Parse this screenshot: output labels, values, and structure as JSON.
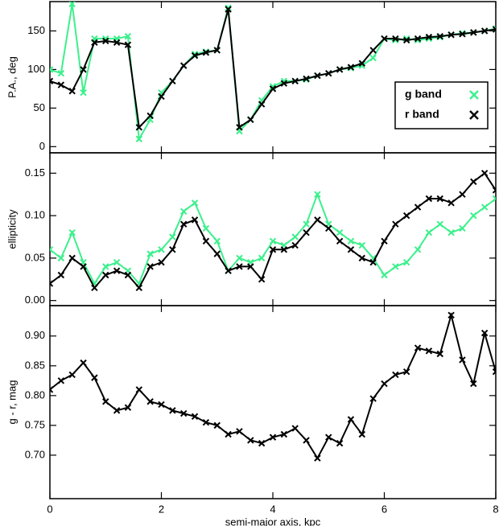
{
  "chart_data": [
    {
      "type": "line",
      "ylabel": "P.A., deg",
      "legend": "right",
      "x": [
        0,
        0.2,
        0.4,
        0.6,
        0.8,
        1.0,
        1.2,
        1.4,
        1.6,
        1.8,
        2.0,
        2.2,
        2.4,
        2.6,
        2.8,
        3.0,
        3.2,
        3.4,
        3.6,
        3.8,
        4.0,
        4.2,
        4.4,
        4.6,
        4.8,
        5.0,
        5.2,
        5.4,
        5.6,
        5.8,
        6.0,
        6.2,
        6.4,
        6.6,
        6.8,
        7.0,
        7.2,
        7.4,
        7.6,
        7.8,
        8.0
      ],
      "xlim": [
        0,
        8
      ],
      "xticks": [
        0,
        2,
        4,
        6,
        8
      ],
      "ylim": [
        -8,
        188
      ],
      "yticks": [
        0,
        50,
        100,
        150
      ],
      "series": [
        {
          "name": "g band",
          "color": "#3cf08c",
          "values": [
            100,
            95,
            185,
            70,
            140,
            140,
            140,
            143,
            10,
            35,
            70,
            85,
            105,
            120,
            123,
            125,
            180,
            20,
            35,
            60,
            78,
            85,
            85,
            87,
            92,
            95,
            100,
            102,
            105,
            115,
            140,
            138,
            140,
            138,
            140,
            142,
            145,
            147,
            148,
            150,
            153
          ]
        },
        {
          "name": "r band",
          "color": "#000000",
          "values": [
            85,
            80,
            72,
            100,
            135,
            137,
            135,
            132,
            25,
            40,
            65,
            85,
            105,
            118,
            122,
            125,
            178,
            25,
            35,
            55,
            75,
            82,
            85,
            88,
            92,
            95,
            100,
            103,
            108,
            125,
            140,
            140,
            138,
            140,
            142,
            143,
            145,
            146,
            148,
            150,
            152
          ]
        }
      ]
    },
    {
      "type": "line",
      "ylabel": "ellipticity",
      "x": [
        0,
        0.2,
        0.4,
        0.6,
        0.8,
        1.0,
        1.2,
        1.4,
        1.6,
        1.8,
        2.0,
        2.2,
        2.4,
        2.6,
        2.8,
        3.0,
        3.2,
        3.4,
        3.6,
        3.8,
        4.0,
        4.2,
        4.4,
        4.6,
        4.8,
        5.0,
        5.2,
        5.4,
        5.6,
        5.8,
        6.0,
        6.2,
        6.4,
        6.6,
        6.8,
        7.0,
        7.2,
        7.4,
        7.6,
        7.8,
        8.0
      ],
      "xlim": [
        0,
        8
      ],
      "xticks": [
        0,
        2,
        4,
        6,
        8
      ],
      "ylim": [
        -0.006,
        0.174
      ],
      "yticks": [
        {
          "value": 0,
          "label": "0.00"
        },
        0.05,
        {
          "value": 0.1,
          "label": "0.10"
        },
        0.15
      ],
      "series": [
        {
          "name": "g band",
          "color": "#3cf08c",
          "values": [
            0.06,
            0.05,
            0.08,
            0.045,
            0.02,
            0.04,
            0.045,
            0.035,
            0.02,
            0.055,
            0.06,
            0.075,
            0.105,
            0.115,
            0.085,
            0.07,
            0.035,
            0.05,
            0.045,
            0.05,
            0.07,
            0.065,
            0.075,
            0.09,
            0.125,
            0.09,
            0.08,
            0.07,
            0.065,
            0.05,
            0.03,
            0.04,
            0.045,
            0.06,
            0.08,
            0.09,
            0.08,
            0.085,
            0.1,
            0.11,
            0.12
          ]
        },
        {
          "name": "r band",
          "color": "#000000",
          "values": [
            0.02,
            0.03,
            0.05,
            0.04,
            0.015,
            0.03,
            0.035,
            0.03,
            0.015,
            0.04,
            0.045,
            0.06,
            0.09,
            0.095,
            0.07,
            0.055,
            0.035,
            0.04,
            0.04,
            0.025,
            0.06,
            0.06,
            0.065,
            0.08,
            0.095,
            0.085,
            0.07,
            0.06,
            0.05,
            0.045,
            0.07,
            0.09,
            0.1,
            0.11,
            0.12,
            0.12,
            0.115,
            0.125,
            0.14,
            0.15,
            0.13
          ]
        }
      ]
    },
    {
      "type": "line",
      "ylabel": "g - r, mag",
      "xlabel": "semi-major axis, kpc",
      "x": [
        0,
        0.2,
        0.4,
        0.6,
        0.8,
        1.0,
        1.2,
        1.4,
        1.6,
        1.8,
        2.0,
        2.2,
        2.4,
        2.6,
        2.8,
        3.0,
        3.2,
        3.4,
        3.6,
        3.8,
        4.0,
        4.2,
        4.4,
        4.6,
        4.8,
        5.0,
        5.2,
        5.4,
        5.6,
        5.8,
        6.0,
        6.2,
        6.4,
        6.6,
        6.8,
        7.0,
        7.2,
        7.4,
        7.6,
        7.8,
        8.0
      ],
      "xlim": [
        0,
        8
      ],
      "xticks": [
        0,
        2,
        4,
        6,
        8
      ],
      "ylim": [
        0.627,
        0.951
      ],
      "yticks": [
        {
          "value": 0.7,
          "label": "0.70"
        },
        0.75,
        {
          "value": 0.8,
          "label": "0.80"
        },
        0.85,
        {
          "value": 0.9,
          "label": "0.90"
        }
      ],
      "series": [
        {
          "color": "#000000",
          "values": [
            0.81,
            0.825,
            0.835,
            0.855,
            0.83,
            0.79,
            0.775,
            0.78,
            0.81,
            0.79,
            0.785,
            0.775,
            0.77,
            0.765,
            0.755,
            0.75,
            0.735,
            0.74,
            0.725,
            0.72,
            0.73,
            0.735,
            0.745,
            0.725,
            0.695,
            0.73,
            0.72,
            0.76,
            0.735,
            0.795,
            0.82,
            0.835,
            0.84,
            0.88,
            0.875,
            0.87,
            0.935,
            0.86,
            0.82,
            0.905,
            0.84
          ]
        }
      ]
    }
  ]
}
